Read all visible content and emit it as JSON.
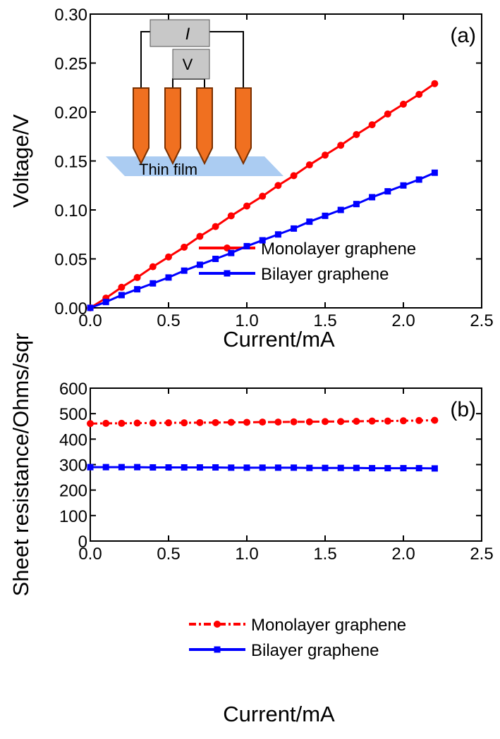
{
  "chart_data": [
    {
      "type": "line",
      "annotation": "(a)",
      "xlabel": "Current/mA",
      "ylabel": "Voltage/V",
      "xlim": [
        0,
        2.5
      ],
      "ylim": [
        0,
        0.3
      ],
      "xticks": [
        {
          "value": 0,
          "label": "0.0"
        },
        {
          "value": 0.5,
          "label": "0.5"
        },
        {
          "value": 1,
          "label": "1.0"
        },
        {
          "value": 1.5,
          "label": "1.5"
        },
        {
          "value": 2,
          "label": "2.0"
        },
        {
          "value": 2.5,
          "label": "2.5"
        }
      ],
      "yticks": [
        {
          "value": 0,
          "label": "0.00"
        },
        {
          "value": 0.05,
          "label": "0.05"
        },
        {
          "value": 0.1,
          "label": "0.10"
        },
        {
          "value": 0.15,
          "label": "0.15"
        },
        {
          "value": 0.2,
          "label": "0.20"
        },
        {
          "value": 0.25,
          "label": "0.25"
        },
        {
          "value": 0.3,
          "label": "0.30"
        }
      ],
      "x": [
        0,
        0.1,
        0.2,
        0.3,
        0.4,
        0.5,
        0.6,
        0.7,
        0.8,
        0.9,
        1.0,
        1.1,
        1.2,
        1.3,
        1.4,
        1.5,
        1.6,
        1.7,
        1.8,
        1.9,
        2.0,
        2.1,
        2.2
      ],
      "series": [
        {
          "name": "Monolayer graphene",
          "color": "#ff0000",
          "marker": "circle",
          "line_style": "solid",
          "values": [
            0,
            0.01,
            0.021,
            0.031,
            0.042,
            0.052,
            0.062,
            0.073,
            0.083,
            0.094,
            0.104,
            0.114,
            0.125,
            0.135,
            0.146,
            0.156,
            0.166,
            0.177,
            0.187,
            0.198,
            0.208,
            0.218,
            0.229
          ]
        },
        {
          "name": "Bilayer graphene",
          "color": "#0000ff",
          "marker": "square",
          "line_style": "solid",
          "values": [
            0,
            0.006,
            0.013,
            0.019,
            0.025,
            0.031,
            0.038,
            0.044,
            0.05,
            0.056,
            0.063,
            0.069,
            0.075,
            0.081,
            0.088,
            0.094,
            0.1,
            0.106,
            0.113,
            0.119,
            0.125,
            0.131,
            0.138
          ]
        }
      ],
      "inset": {
        "current_label": "I",
        "voltage_label": "V",
        "film_label": "Thin film"
      }
    },
    {
      "type": "line",
      "annotation": "(b)",
      "xlabel": "Current/mA",
      "ylabel": "Sheet resistance/Ohms/sqr",
      "xlim": [
        0,
        2.5
      ],
      "ylim": [
        0,
        600
      ],
      "xticks": [
        {
          "value": 0,
          "label": "0.0"
        },
        {
          "value": 0.5,
          "label": "0.5"
        },
        {
          "value": 1,
          "label": "1.0"
        },
        {
          "value": 1.5,
          "label": "1.5"
        },
        {
          "value": 2,
          "label": "2.0"
        },
        {
          "value": 2.5,
          "label": "2.5"
        }
      ],
      "yticks": [
        0,
        100,
        200,
        300,
        400,
        500,
        600
      ],
      "x": [
        0,
        0.1,
        0.2,
        0.3,
        0.4,
        0.5,
        0.6,
        0.7,
        0.8,
        0.9,
        1.0,
        1.1,
        1.2,
        1.3,
        1.4,
        1.5,
        1.6,
        1.7,
        1.8,
        1.9,
        2.0,
        2.1,
        2.2
      ],
      "series": [
        {
          "name": "Monolayer graphene",
          "color": "#ff0000",
          "marker": "circle",
          "line_style": "dashdot",
          "values": [
            461,
            462,
            462,
            463,
            463,
            464,
            464,
            465,
            465,
            466,
            466,
            467,
            467,
            468,
            468,
            469,
            469,
            470,
            471,
            471,
            472,
            473,
            474
          ]
        },
        {
          "name": "Bilayer graphene",
          "color": "#0000ff",
          "marker": "square",
          "line_style": "solid",
          "values": [
            290,
            290,
            290,
            290,
            289,
            289,
            289,
            289,
            289,
            288,
            288,
            288,
            288,
            288,
            287,
            287,
            287,
            287,
            286,
            286,
            286,
            286,
            285
          ]
        }
      ]
    }
  ]
}
